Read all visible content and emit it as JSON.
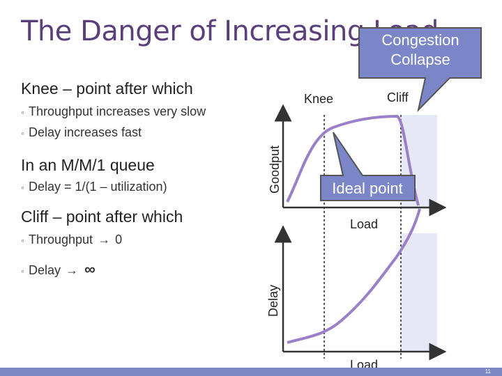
{
  "slide": {
    "title": "The Danger of Increasing Load",
    "page_number": "11"
  },
  "content": {
    "knee_heading": "Knee – point after which",
    "knee_items": [
      "Throughput increases very slow",
      "Delay increases fast"
    ],
    "mm1_heading": "In an M/M/1 queue",
    "mm1_items": [
      "Delay = 1/(1 – utilization)"
    ],
    "cliff_heading": "Cliff – point after which",
    "cliff_items": [
      {
        "before": "Throughput",
        "after": "0"
      },
      {
        "before": "Delay",
        "after": "∞"
      }
    ]
  },
  "diagram": {
    "top_graph": {
      "ylabel": "Goodput",
      "xlabel": "Load",
      "knee_label": "Knee",
      "cliff_label": "Cliff"
    },
    "bottom_graph": {
      "ylabel": "Delay",
      "xlabel": "Load"
    },
    "callouts": {
      "congestion_line1": "Congestion",
      "congestion_line2": "Collapse",
      "ideal_point": "Ideal point"
    },
    "colors": {
      "curve": "#9b7fc8",
      "callout_fill": "#7a86c8",
      "shade": "#e6e8f5",
      "title": "#5b3f7a"
    }
  }
}
